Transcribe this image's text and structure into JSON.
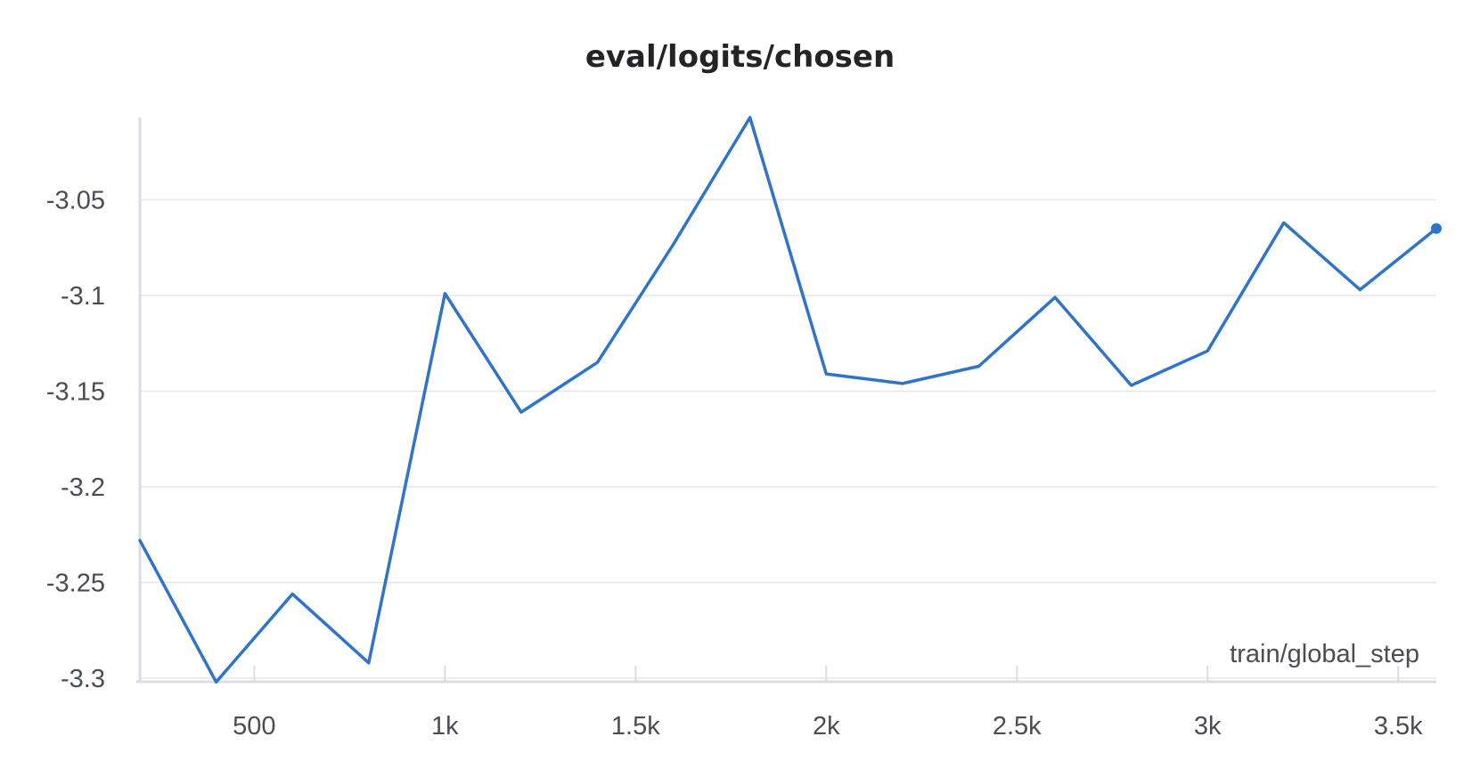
{
  "chart_data": {
    "type": "line",
    "title": "eval/logits/chosen",
    "xlabel": "train/global_step",
    "ylabel": "",
    "xlim": [
      200,
      3600
    ],
    "ylim": [
      -3.3,
      -3.007
    ],
    "x_ticks": [
      500,
      1000,
      1500,
      2000,
      2500,
      3000,
      3500
    ],
    "x_tick_labels": [
      "500",
      "1k",
      "1.5k",
      "2k",
      "2.5k",
      "3k",
      "3.5k"
    ],
    "y_ticks": [
      -3.05,
      -3.1,
      -3.15,
      -3.2,
      -3.25,
      -3.3
    ],
    "y_tick_labels": [
      "-3.05",
      "-3.1",
      "-3.15",
      "-3.2",
      "-3.25",
      "-3.3"
    ],
    "grid": true,
    "line_color": "#2f74c8",
    "series": [
      {
        "x": [
          200,
          400,
          600,
          800,
          1000,
          1200,
          1400,
          1600,
          1800,
          2000,
          2200,
          2400,
          2600,
          2800,
          3000,
          3200,
          3400,
          3600
        ],
        "values": [
          -3.228,
          -3.302,
          -3.256,
          -3.292,
          -3.099,
          -3.161,
          -3.135,
          -3.073,
          -3.007,
          -3.141,
          -3.146,
          -3.137,
          -3.101,
          -3.147,
          -3.129,
          -3.062,
          -3.097,
          -3.065
        ]
      }
    ]
  }
}
